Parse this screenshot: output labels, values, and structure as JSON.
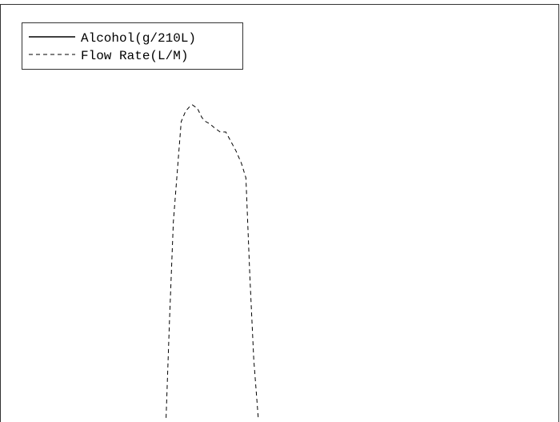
{
  "chart_data": {
    "type": "line",
    "title": "",
    "xlabel": "",
    "ylabel": "",
    "grid": false,
    "legend_placement": "top-left",
    "xlim": [
      0,
      100
    ],
    "ylim": [
      0,
      100
    ],
    "series": [
      {
        "name": "Alcohol(g/210L)",
        "style": "solid",
        "color": "#000000",
        "x": [],
        "y": []
      },
      {
        "name": "Flow Rate(L/M)",
        "style": "dashed",
        "color": "#000000",
        "x": [
          29.6,
          30.2,
          30.9,
          31.6,
          32.3,
          33.1,
          33.9,
          34.3,
          35.2,
          36.0,
          36.7,
          37.4,
          38.2,
          39.3,
          40.3,
          41.3,
          42.1,
          43.1,
          43.9,
          44.6,
          45.3,
          46.1
        ],
        "y": [
          1.0,
          24.0,
          48.0,
          60.0,
          72.0,
          74.5,
          75.7,
          76.0,
          75.2,
          73.0,
          72.0,
          71.5,
          70.6,
          69.5,
          69.5,
          67.0,
          65.0,
          62.0,
          58.5,
          35.0,
          15.0,
          1.0
        ]
      }
    ]
  }
}
